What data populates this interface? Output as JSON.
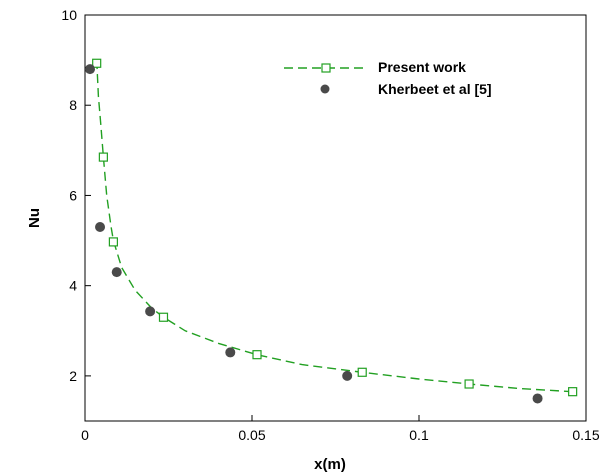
{
  "chart_data": {
    "type": "line",
    "title": "",
    "xlabel": "x(m)",
    "ylabel": "Nu",
    "xlim": [
      0,
      0.15
    ],
    "ylim": [
      1,
      10
    ],
    "x_ticks": [
      0,
      0.05,
      0.1,
      0.15
    ],
    "x_tick_labels": [
      "0",
      "0.05",
      "0.1",
      "0.15"
    ],
    "y_ticks": [
      2,
      4,
      6,
      8,
      10
    ],
    "y_tick_labels": [
      "2",
      "4",
      "6",
      "8",
      "10"
    ],
    "grid": false,
    "legend_position": "top-right",
    "series": [
      {
        "name": "Present work",
        "style": "dashed-line-open-square-markers",
        "color": "#22a022",
        "curve": [
          {
            "x": 0.0035,
            "y": 9.0
          },
          {
            "x": 0.004,
            "y": 8.2
          },
          {
            "x": 0.0047,
            "y": 7.6
          },
          {
            "x": 0.0055,
            "y": 6.85
          },
          {
            "x": 0.0065,
            "y": 6.0
          },
          {
            "x": 0.0078,
            "y": 5.3
          },
          {
            "x": 0.0085,
            "y": 5.0
          },
          {
            "x": 0.011,
            "y": 4.4
          },
          {
            "x": 0.015,
            "y": 3.9
          },
          {
            "x": 0.02,
            "y": 3.5
          },
          {
            "x": 0.0235,
            "y": 3.3
          },
          {
            "x": 0.03,
            "y": 3.0
          },
          {
            "x": 0.04,
            "y": 2.72
          },
          {
            "x": 0.0515,
            "y": 2.47
          },
          {
            "x": 0.065,
            "y": 2.25
          },
          {
            "x": 0.083,
            "y": 2.08
          },
          {
            "x": 0.1,
            "y": 1.93
          },
          {
            "x": 0.115,
            "y": 1.82
          },
          {
            "x": 0.13,
            "y": 1.72
          },
          {
            "x": 0.146,
            "y": 1.65
          }
        ],
        "markers": [
          {
            "x": 0.0035,
            "y": 8.93
          },
          {
            "x": 0.0055,
            "y": 6.85
          },
          {
            "x": 0.0085,
            "y": 4.97
          },
          {
            "x": 0.0235,
            "y": 3.3
          },
          {
            "x": 0.0515,
            "y": 2.47
          },
          {
            "x": 0.083,
            "y": 2.08
          },
          {
            "x": 0.115,
            "y": 1.82
          },
          {
            "x": 0.146,
            "y": 1.65
          }
        ]
      },
      {
        "name": "Kherbeet et al [5]",
        "style": "filled-circle-markers",
        "color": "#4a4a4a",
        "markers": [
          {
            "x": 0.0015,
            "y": 8.8
          },
          {
            "x": 0.0045,
            "y": 5.3
          },
          {
            "x": 0.0095,
            "y": 4.3
          },
          {
            "x": 0.0195,
            "y": 3.43
          },
          {
            "x": 0.0435,
            "y": 2.52
          },
          {
            "x": 0.0785,
            "y": 2.0
          },
          {
            "x": 0.1355,
            "y": 1.5
          }
        ]
      }
    ]
  }
}
